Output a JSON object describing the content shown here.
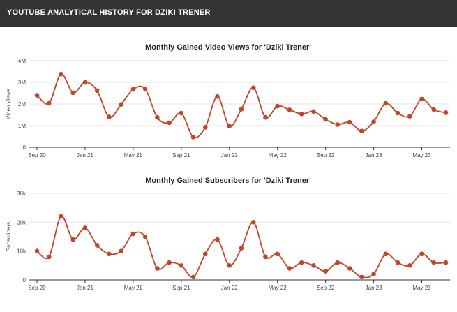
{
  "header": {
    "title": "YOUTUBE ANALYTICAL HISTORY FOR DZIKI TRENER"
  },
  "colors": {
    "header_bg": "#333333",
    "line": "#c0462a",
    "grid": "#e6e6e6",
    "axis": "#333333"
  },
  "chart_data": [
    {
      "type": "line",
      "title": "Monthly Gained Video Views for 'Dziki Trener'",
      "xlabel": "",
      "ylabel": "Video Views",
      "ylim": [
        0,
        4000000
      ],
      "ytick_values": [
        0,
        1000000,
        2000000,
        3000000,
        4000000
      ],
      "ytick_labels": [
        "0",
        "1M",
        "2M",
        "3M",
        "4M"
      ],
      "xtick_labels": [
        "Sep 20",
        "Jan 21",
        "May 21",
        "Sep 21",
        "Jan 22",
        "May 22",
        "Sep 22",
        "Jan 23",
        "May 23"
      ],
      "xtick_index": [
        0,
        4,
        8,
        12,
        16,
        20,
        24,
        28,
        32
      ],
      "values": [
        2400000,
        2030000,
        3380000,
        2520000,
        3000000,
        2620000,
        1400000,
        1980000,
        2680000,
        2700000,
        1380000,
        1130000,
        1580000,
        470000,
        920000,
        2350000,
        980000,
        1760000,
        2750000,
        1380000,
        1900000,
        1730000,
        1540000,
        1650000,
        1290000,
        1050000,
        1160000,
        750000,
        1180000,
        2030000,
        1580000,
        1430000,
        2230000,
        1740000,
        1600000
      ]
    },
    {
      "type": "line",
      "title": "Monthly Gained Subscribers for 'Dziki Trener'",
      "xlabel": "",
      "ylabel": "Subscribers",
      "ylim": [
        0,
        30000
      ],
      "ytick_values": [
        0,
        10000,
        20000,
        30000
      ],
      "ytick_labels": [
        "0",
        "10k",
        "20k",
        "30k"
      ],
      "xtick_labels": [
        "Sep 20",
        "Jan 21",
        "May 21",
        "Sep 21",
        "Jan 22",
        "May 22",
        "Sep 22",
        "Jan 23",
        "May 23"
      ],
      "xtick_index": [
        0,
        4,
        8,
        12,
        16,
        20,
        24,
        28,
        32
      ],
      "values": [
        10000,
        8000,
        22000,
        14000,
        18000,
        12000,
        9000,
        10000,
        16000,
        15000,
        4000,
        6000,
        5000,
        1000,
        9000,
        14000,
        5000,
        11000,
        20000,
        8000,
        9000,
        4000,
        6000,
        5000,
        3000,
        6000,
        4000,
        1000,
        2000,
        9000,
        6000,
        5000,
        9000,
        6000,
        6000
      ]
    }
  ]
}
